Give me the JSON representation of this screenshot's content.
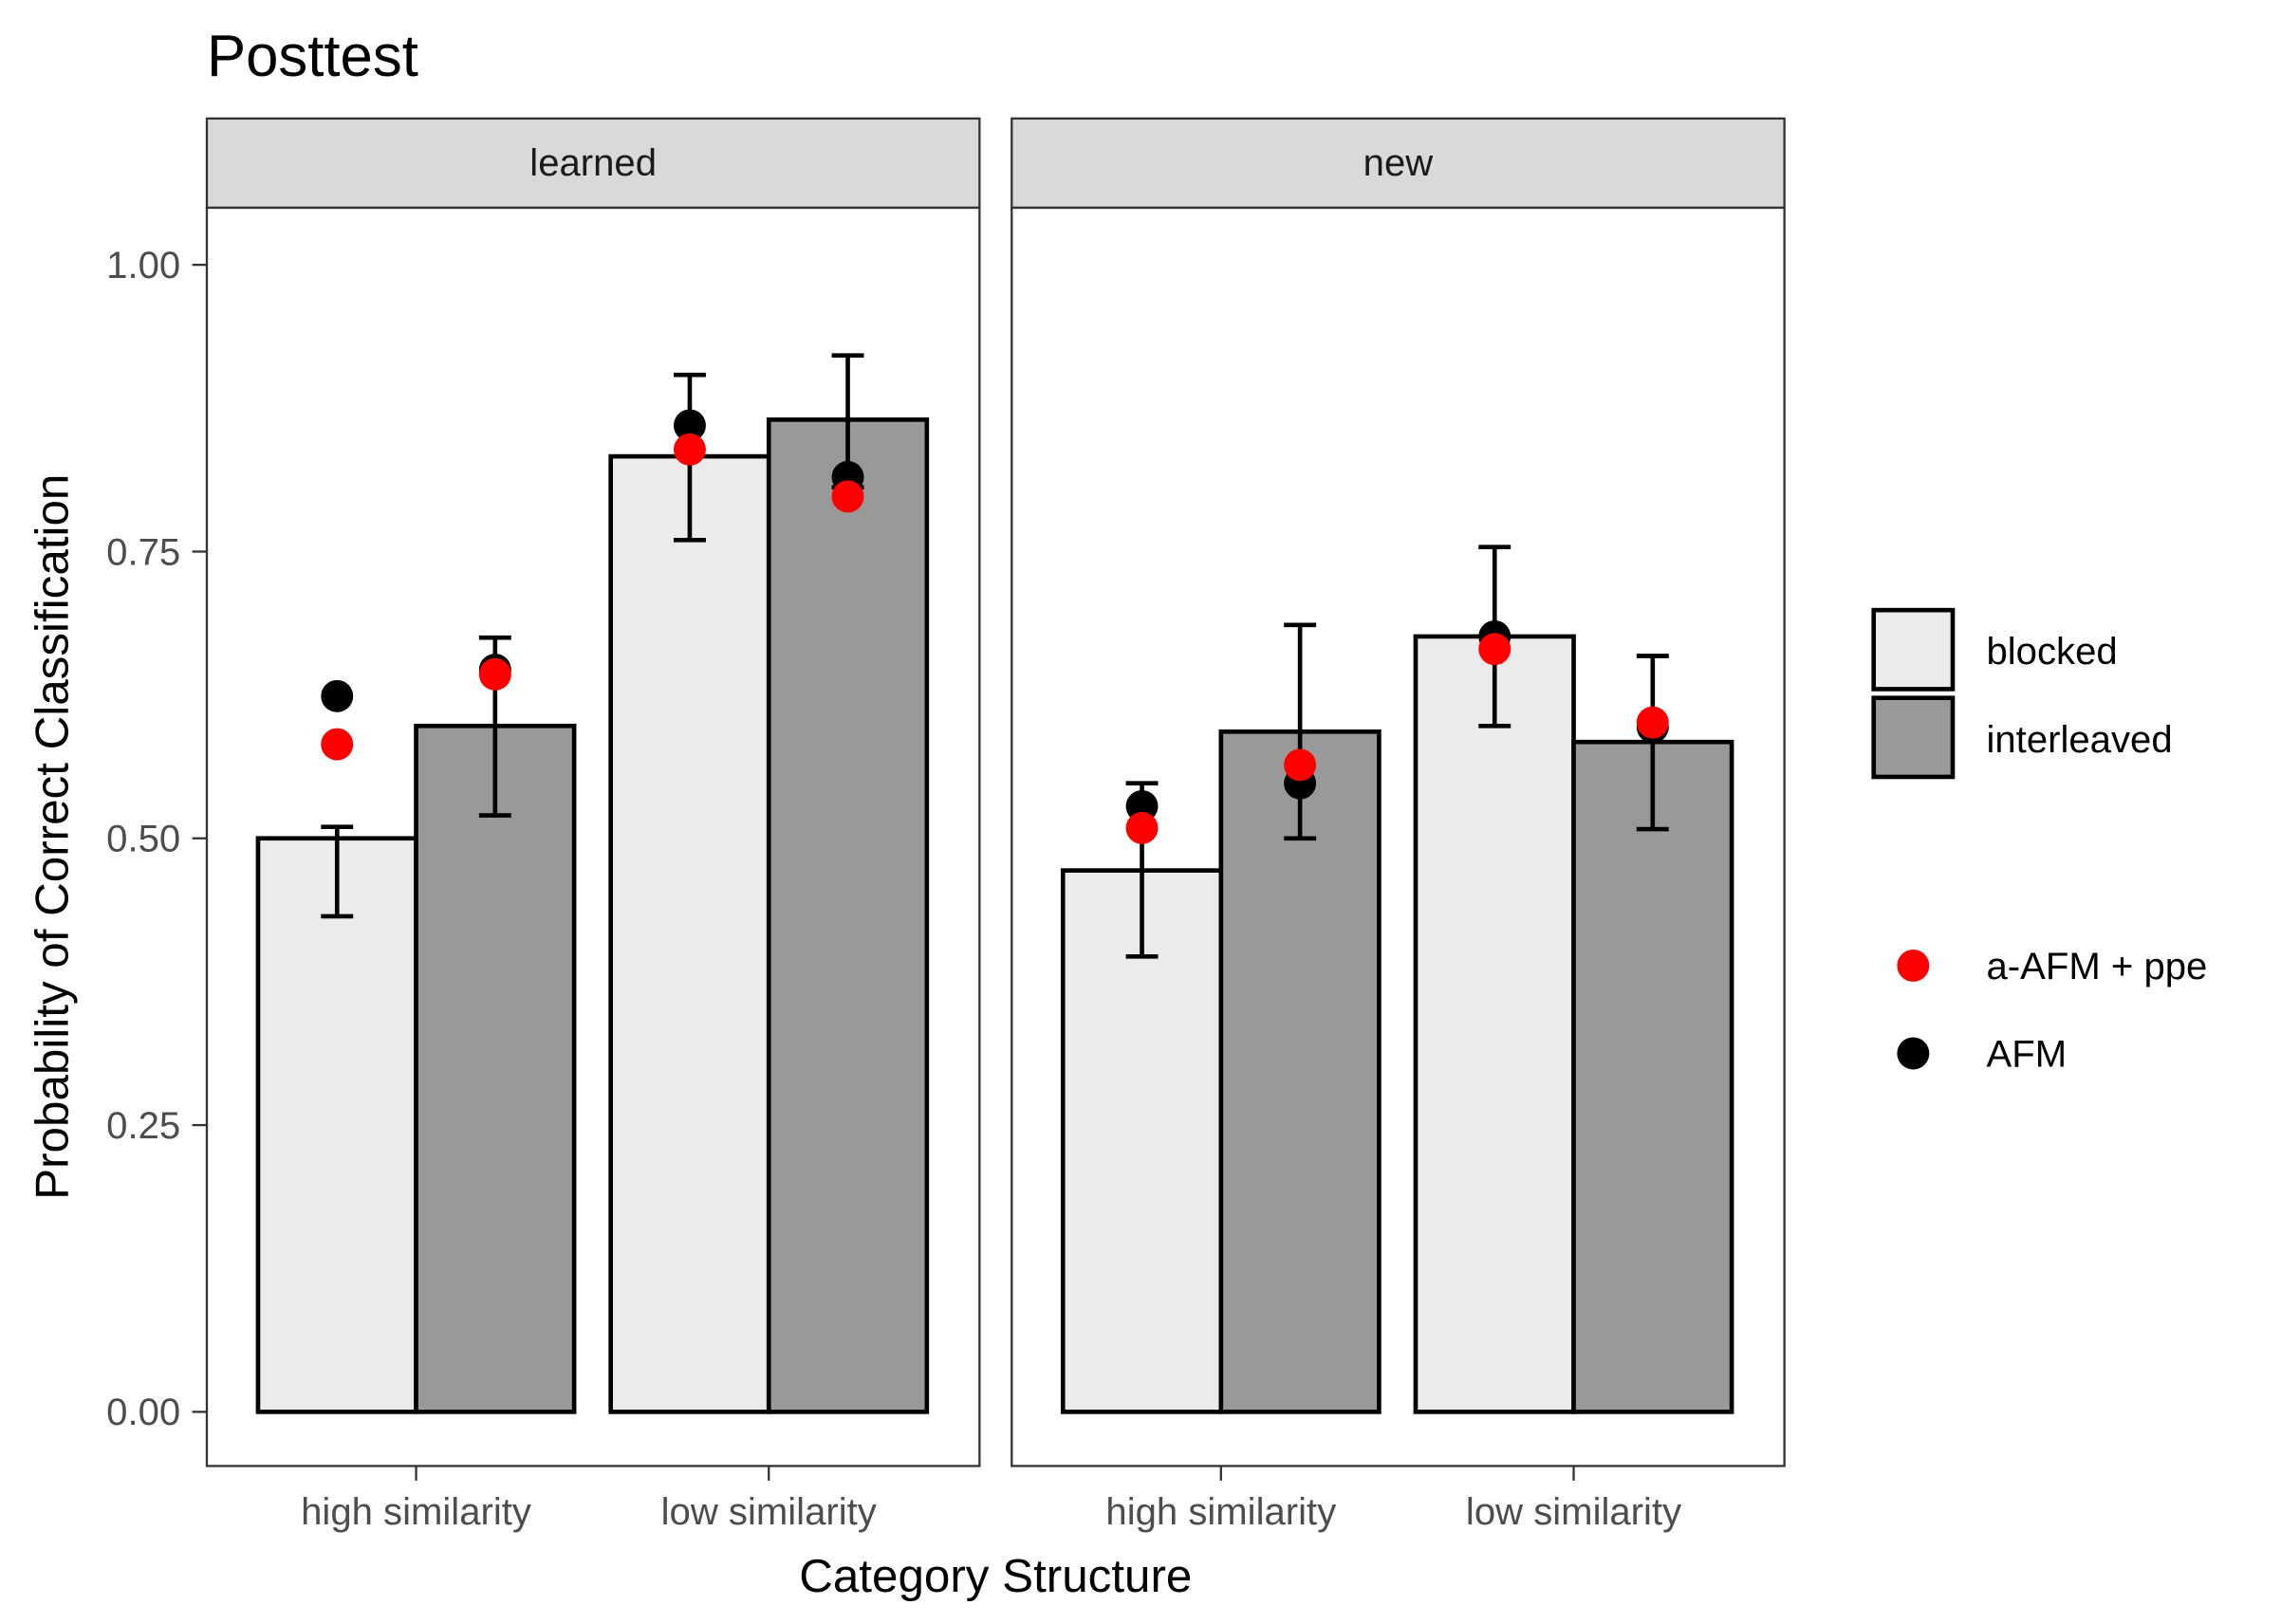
{
  "chart_data": {
    "type": "bar",
    "title": "Posttest",
    "xlabel": "Category Structure",
    "ylabel": "Probability of Correct Classification",
    "ylim": [
      0,
      1.05
    ],
    "yticks": [
      "0.00",
      "0.25",
      "0.50",
      "0.75",
      "1.00"
    ],
    "ytick_values": [
      0,
      0.25,
      0.5,
      0.75,
      1.0
    ],
    "categories": [
      "high similarity",
      "low similarity"
    ],
    "grid": false,
    "legend_placement": "right",
    "fill_legend": [
      {
        "name": "blocked",
        "color": "#ebebeb"
      },
      {
        "name": "interleaved",
        "color": "#999999"
      }
    ],
    "point_legend": [
      {
        "name": "a-AFM + ppe",
        "color": "#ff0000"
      },
      {
        "name": "AFM",
        "color": "#000000"
      }
    ],
    "panels": [
      {
        "label": "learned",
        "bars": [
          {
            "category": "high similarity",
            "group": "blocked",
            "value": 0.5,
            "err_low": 0.432,
            "err_high": 0.51,
            "afm": 0.624,
            "aafm_ppe": 0.582
          },
          {
            "category": "high similarity",
            "group": "interleaved",
            "value": 0.598,
            "err_low": 0.52,
            "err_high": 0.675,
            "afm": 0.647,
            "aafm_ppe": 0.643
          },
          {
            "category": "low similarity",
            "group": "blocked",
            "value": 0.833,
            "err_low": 0.76,
            "err_high": 0.904,
            "afm": 0.86,
            "aafm_ppe": 0.839
          },
          {
            "category": "low similarity",
            "group": "interleaved",
            "value": 0.865,
            "err_low": 0.806,
            "err_high": 0.921,
            "afm": 0.815,
            "aafm_ppe": 0.798
          }
        ]
      },
      {
        "label": "new",
        "bars": [
          {
            "category": "high similarity",
            "group": "blocked",
            "value": 0.472,
            "err_low": 0.397,
            "err_high": 0.548,
            "afm": 0.528,
            "aafm_ppe": 0.509
          },
          {
            "category": "high similarity",
            "group": "interleaved",
            "value": 0.593,
            "err_low": 0.5,
            "err_high": 0.686,
            "afm": 0.548,
            "aafm_ppe": 0.564
          },
          {
            "category": "low similarity",
            "group": "blocked",
            "value": 0.676,
            "err_low": 0.598,
            "err_high": 0.754,
            "afm": 0.676,
            "aafm_ppe": 0.665
          },
          {
            "category": "low similarity",
            "group": "interleaved",
            "value": 0.584,
            "err_low": 0.508,
            "err_high": 0.659,
            "afm": 0.597,
            "aafm_ppe": 0.601
          }
        ]
      }
    ]
  }
}
